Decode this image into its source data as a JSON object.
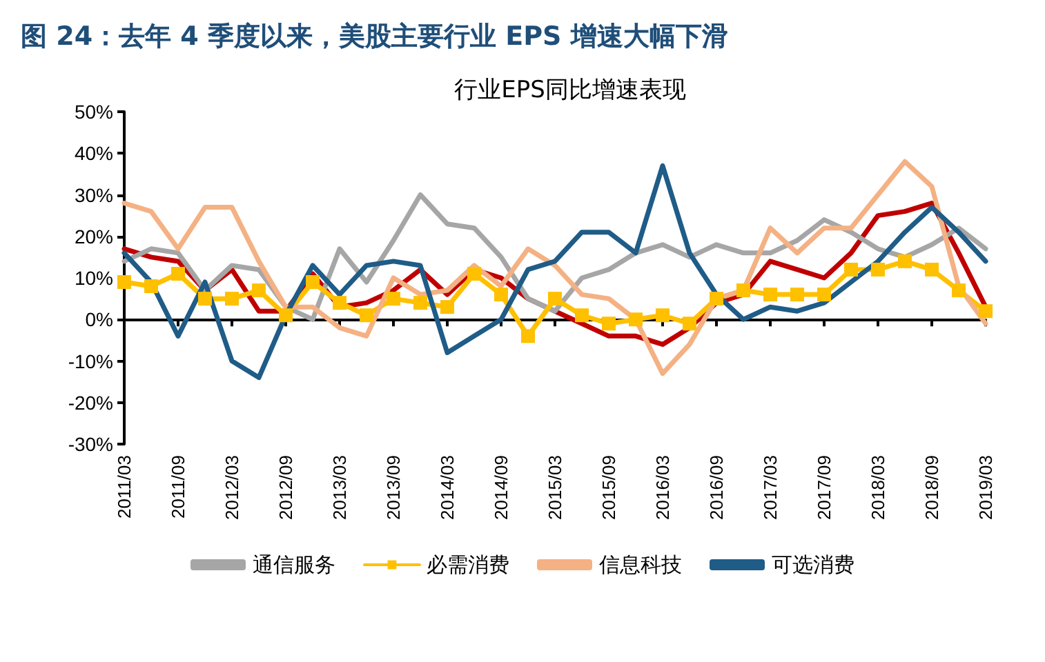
{
  "chart_data": {
    "type": "line",
    "title": "图 24：去年 4 季度以来，美股主要行业 EPS 增速大幅下滑",
    "subtitle": "行业EPS同比增速表现",
    "categories": [
      "2011/03",
      null,
      "2011/09",
      null,
      "2012/03",
      null,
      "2012/09",
      null,
      "2013/03",
      null,
      "2013/09",
      null,
      "2014/03",
      null,
      "2014/09",
      null,
      "2015/03",
      null,
      "2015/09",
      null,
      "2016/03",
      null,
      "2016/09",
      null,
      "2017/03",
      null,
      "2017/09",
      null,
      "2018/03",
      null,
      "2018/09",
      null,
      "2019/03"
    ],
    "series": [
      {
        "color": "#c00000",
        "marker": "none",
        "values": [
          17,
          15,
          14,
          7,
          12,
          2,
          2,
          11,
          3,
          4,
          7,
          12,
          6,
          12,
          10,
          5,
          2,
          -1,
          -4,
          -4,
          -6,
          -2,
          4,
          6,
          14,
          12,
          10,
          16,
          25,
          26,
          28,
          16,
          3
        ]
      },
      {
        "name": "通信服务",
        "color": "#a6a6a6",
        "marker": "none",
        "values": [
          14,
          17,
          16,
          7,
          13,
          12,
          3,
          0,
          17,
          9,
          19,
          30,
          23,
          22,
          15,
          5,
          2,
          10,
          12,
          16,
          18,
          15,
          18,
          16,
          16,
          19,
          24,
          21,
          17,
          15,
          18,
          22,
          17
        ]
      },
      {
        "name": "必需消费",
        "color": "#ffc000",
        "marker": "square",
        "values": [
          9,
          8,
          11,
          5,
          5,
          7,
          1,
          9,
          4,
          1,
          5,
          4,
          3,
          11,
          6,
          -4,
          5,
          1,
          -1,
          0,
          1,
          -1,
          5,
          7,
          6,
          6,
          6,
          12,
          12,
          14,
          12,
          7,
          2
        ]
      },
      {
        "name": "信息科技",
        "color": "#f4b183",
        "marker": "none",
        "values": [
          28,
          26,
          17,
          27,
          27,
          14,
          3,
          3,
          -2,
          -4,
          10,
          6,
          7,
          13,
          8,
          17,
          13,
          6,
          5,
          0,
          -13,
          -6,
          5,
          7,
          22,
          16,
          22,
          22,
          30,
          38,
          32,
          8,
          -1
        ]
      },
      {
        "name": "可选消费",
        "color": "#1f5c87",
        "marker": "none",
        "values": [
          16,
          9,
          -4,
          9,
          -10,
          -14,
          1,
          13,
          6,
          13,
          14,
          13,
          -8,
          -4,
          0,
          12,
          14,
          21,
          21,
          16,
          37,
          16,
          6,
          0,
          3,
          2,
          4,
          9,
          14,
          21,
          27,
          21,
          14
        ]
      }
    ],
    "ylim": [
      -30,
      50
    ],
    "yticks": [
      {
        "value": -30,
        "label": "-30%"
      },
      {
        "value": -20,
        "label": "-20%"
      },
      {
        "value": -10,
        "label": "-10%"
      },
      {
        "value": 0,
        "label": "0%"
      },
      {
        "value": 10,
        "label": "10%"
      },
      {
        "value": 20,
        "label": "20%"
      },
      {
        "value": 30,
        "label": "30%"
      },
      {
        "value": 40,
        "label": "40%"
      },
      {
        "value": 50,
        "label": "50%"
      }
    ],
    "legend": "bottom",
    "line_style": "solid"
  }
}
